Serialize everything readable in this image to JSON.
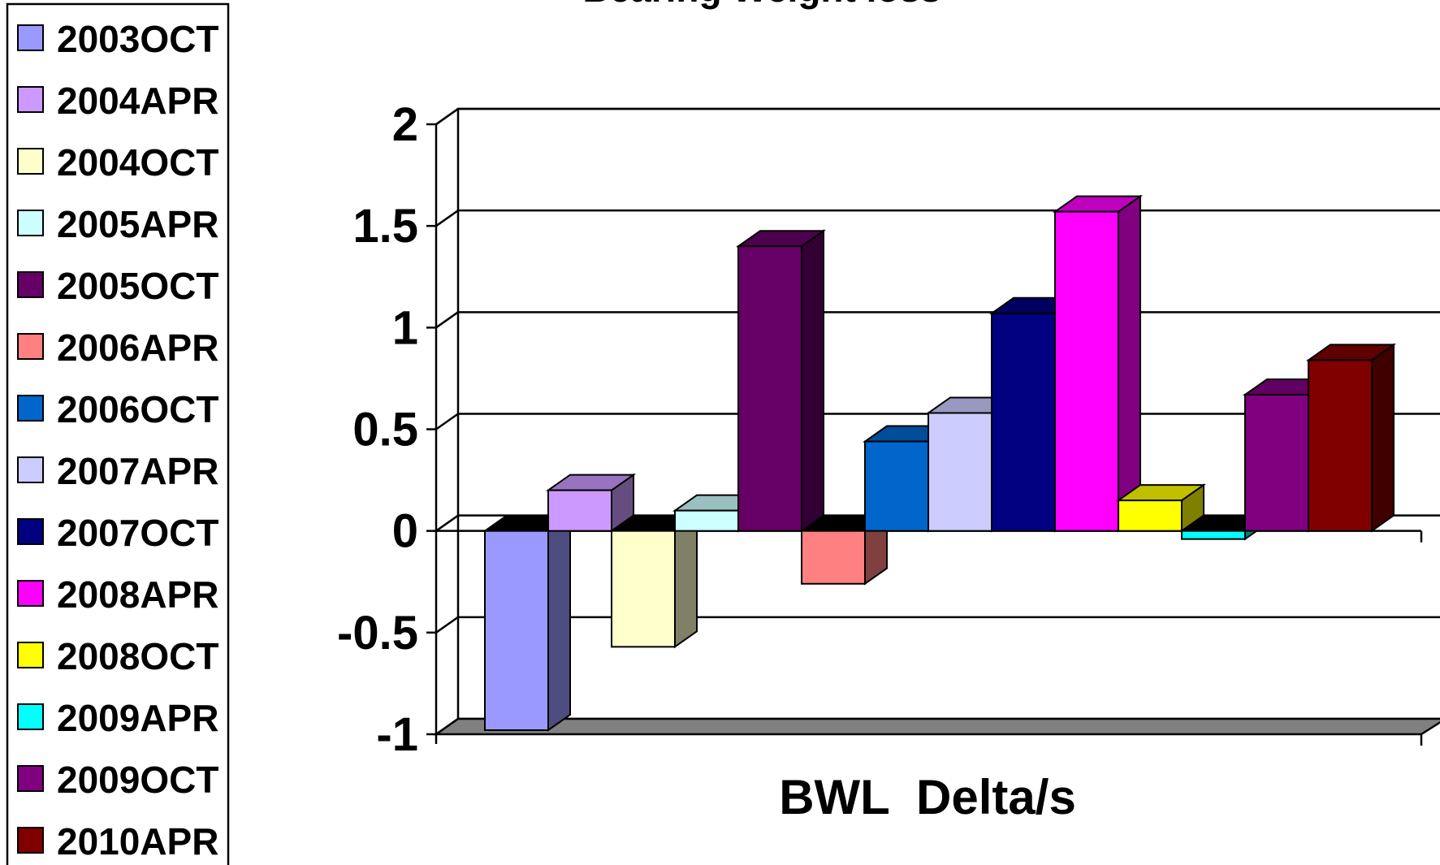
{
  "chart_data": {
    "type": "bar",
    "title": "Bearing Weight loss",
    "xlabel": "BWL  Delta/s",
    "ylabel": "",
    "ylim": [
      -1,
      2
    ],
    "y_ticks": [
      "2",
      "1.5",
      "1",
      "0.5",
      "0",
      "-0.5",
      "-1"
    ],
    "y_tick_values": [
      2,
      1.5,
      1,
      0.5,
      0,
      -0.5,
      -1
    ],
    "grid": true,
    "legend_position": "left",
    "series": [
      {
        "name": "2003OCT",
        "value": -0.98,
        "color": "#9999FF"
      },
      {
        "name": "2004APR",
        "value": 0.2,
        "color": "#CC99FF"
      },
      {
        "name": "2004OCT",
        "value": -0.57,
        "color": "#FFFFCC"
      },
      {
        "name": "2005APR",
        "value": 0.1,
        "color": "#CCFFFF"
      },
      {
        "name": "2005OCT",
        "value": 1.4,
        "color": "#660066"
      },
      {
        "name": "2006APR",
        "value": -0.26,
        "color": "#FF8080"
      },
      {
        "name": "2006OCT",
        "value": 0.44,
        "color": "#0066CC"
      },
      {
        "name": "2007APR",
        "value": 0.58,
        "color": "#CCCCFF"
      },
      {
        "name": "2007OCT",
        "value": 1.07,
        "color": "#000080"
      },
      {
        "name": "2008APR",
        "value": 1.57,
        "color": "#FF00FF"
      },
      {
        "name": "2008OCT",
        "value": 0.15,
        "color": "#FFFF00"
      },
      {
        "name": "2009APR",
        "value": -0.04,
        "color": "#00FFFF"
      },
      {
        "name": "2009OCT",
        "value": 0.67,
        "color": "#800080"
      },
      {
        "name": "2010APR",
        "value": 0.84,
        "color": "#800000"
      }
    ]
  }
}
